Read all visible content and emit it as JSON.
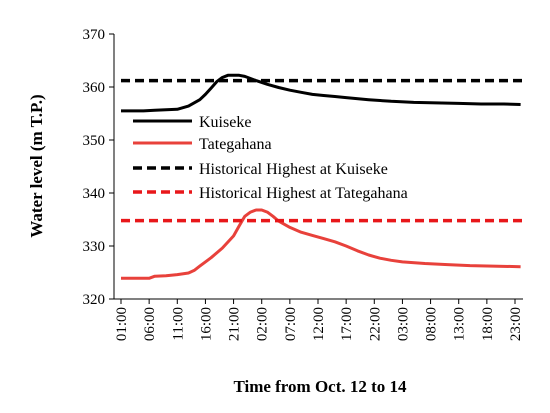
{
  "chart_data": {
    "type": "line",
    "xlabel": "Time from Oct. 12 to 14",
    "ylabel": "Water level (m T.P.)",
    "ylim": [
      320,
      370
    ],
    "yticks": [
      320,
      330,
      340,
      350,
      360,
      370
    ],
    "x_tick_labels": [
      "01:00",
      "06:00",
      "11:00",
      "16:00",
      "21:00",
      "02:00",
      "07:00",
      "12:00",
      "17:00",
      "22:00",
      "03:00",
      "08:00",
      "13:00",
      "18:00",
      "23:00"
    ],
    "x_tick_hours": [
      0,
      5,
      10,
      15,
      20,
      25,
      30,
      35,
      40,
      45,
      50,
      55,
      60,
      65,
      70
    ],
    "xlim_hours": [
      0,
      71.5
    ],
    "grid": false,
    "legend_position": "upper-left-inside",
    "series": [
      {
        "name": "Kuiseke",
        "color": "#000000",
        "style": "solid",
        "x_hours": [
          0,
          4,
          6,
          8,
          10,
          12,
          14,
          15,
          16,
          17,
          18,
          19,
          20,
          21,
          22,
          23,
          24,
          26,
          28,
          30,
          32,
          34,
          36,
          38,
          40,
          44,
          48,
          52,
          56,
          60,
          64,
          68,
          71
        ],
        "y": [
          355.5,
          355.5,
          355.6,
          355.7,
          355.8,
          356.4,
          357.6,
          358.6,
          359.8,
          361.0,
          361.8,
          362.2,
          362.2,
          362.2,
          362.0,
          361.6,
          361.2,
          360.5,
          359.9,
          359.4,
          359.0,
          358.6,
          358.4,
          358.2,
          358.0,
          357.6,
          357.3,
          357.1,
          357.0,
          356.9,
          356.8,
          356.8,
          356.7
        ]
      },
      {
        "name": "Tategahana",
        "color": "#e8413b",
        "style": "solid",
        "x_hours": [
          0,
          2,
          4,
          5,
          6,
          8,
          10,
          12,
          13,
          14,
          15,
          16,
          18,
          20,
          21,
          22,
          23,
          24,
          25,
          26,
          27,
          28,
          30,
          32,
          34,
          36,
          38,
          40,
          42,
          44,
          46,
          48,
          50,
          54,
          58,
          62,
          66,
          71
        ],
        "y": [
          323.9,
          323.9,
          323.9,
          323.9,
          324.3,
          324.4,
          324.6,
          324.9,
          325.4,
          326.2,
          327.0,
          327.8,
          329.6,
          331.9,
          333.8,
          335.6,
          336.4,
          336.8,
          336.8,
          336.4,
          335.6,
          334.7,
          333.5,
          332.6,
          332.0,
          331.4,
          330.8,
          330.0,
          329.1,
          328.3,
          327.7,
          327.3,
          327.0,
          326.7,
          326.5,
          326.3,
          326.2,
          326.1
        ]
      },
      {
        "name": "Historical Highest at Kuiseke",
        "color": "#000000",
        "style": "dashed",
        "x_hours": [
          0,
          71.5
        ],
        "y": [
          361.2,
          361.2
        ]
      },
      {
        "name": "Historical Highest at Tategahana",
        "color": "#e8171a",
        "style": "dashed",
        "x_hours": [
          0,
          71.5
        ],
        "y": [
          334.8,
          334.8
        ]
      }
    ]
  }
}
